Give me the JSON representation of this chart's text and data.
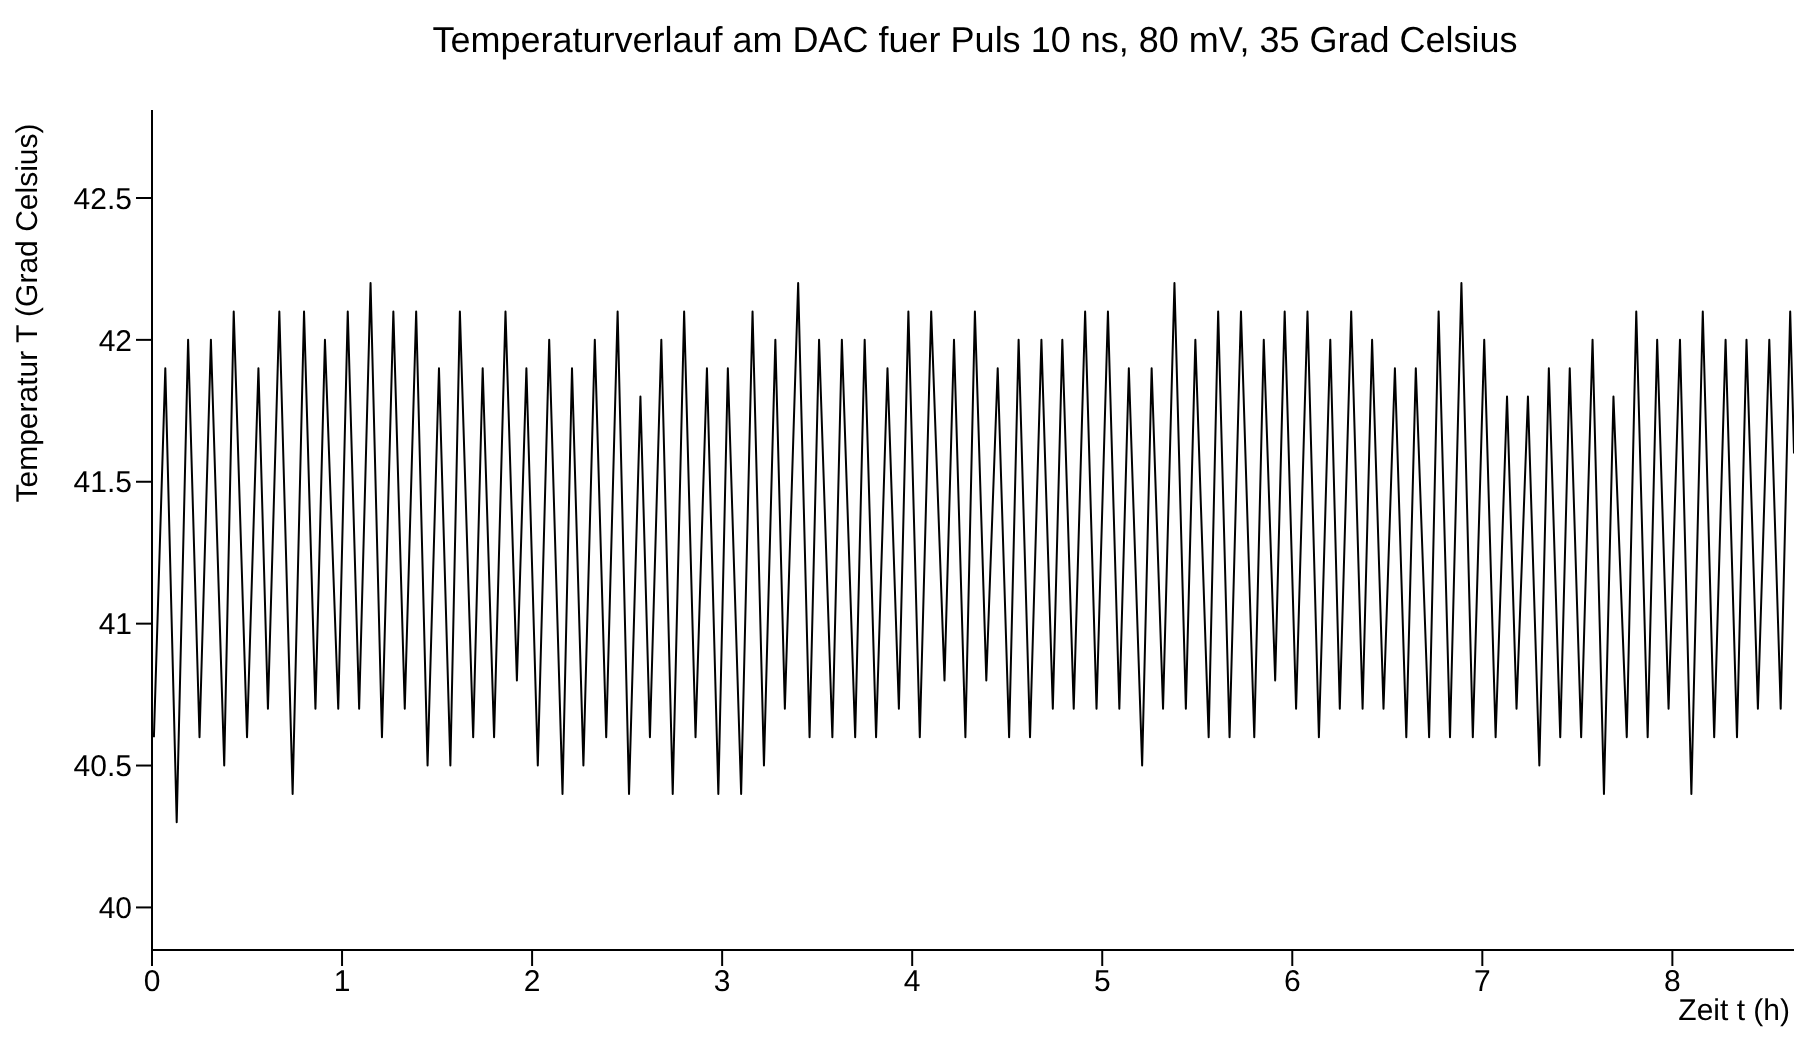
{
  "chart_data": {
    "type": "line",
    "title": "Temperaturverlauf am DAC fuer Puls 10 ns, 80 mV, 35 Grad Celsius",
    "xlabel": "Zeit t (h)",
    "ylabel": "Temperatur T (Grad Celsius)",
    "xlim": [
      0,
      8.64
    ],
    "xticks": [
      0,
      1,
      2,
      3,
      4,
      5,
      6,
      7,
      8
    ],
    "ylim": [
      39.85,
      42.81
    ],
    "yticks": [
      40,
      40.5,
      41,
      41.5,
      42,
      42.5
    ],
    "grid": false,
    "legend": false,
    "series": [
      {
        "color": "#000000",
        "x": [
          0.01,
          0.07,
          0.13,
          0.19,
          0.25,
          0.31,
          0.38,
          0.43,
          0.5,
          0.56,
          0.61,
          0.67,
          0.74,
          0.8,
          0.86,
          0.91,
          0.98,
          1.03,
          1.09,
          1.15,
          1.21,
          1.27,
          1.33,
          1.39,
          1.45,
          1.51,
          1.57,
          1.62,
          1.69,
          1.74,
          1.8,
          1.86,
          1.92,
          1.97,
          2.03,
          2.09,
          2.16,
          2.21,
          2.27,
          2.33,
          2.39,
          2.45,
          2.51,
          2.57,
          2.62,
          2.68,
          2.74,
          2.8,
          2.86,
          2.92,
          2.98,
          3.03,
          3.1,
          3.16,
          3.22,
          3.28,
          3.33,
          3.4,
          3.46,
          3.51,
          3.58,
          3.63,
          3.7,
          3.75,
          3.81,
          3.87,
          3.93,
          3.98,
          4.04,
          4.1,
          4.17,
          4.22,
          4.28,
          4.33,
          4.39,
          4.45,
          4.51,
          4.56,
          4.62,
          4.68,
          4.74,
          4.79,
          4.85,
          4.91,
          4.97,
          5.03,
          5.09,
          5.14,
          5.21,
          5.26,
          5.32,
          5.38,
          5.44,
          5.49,
          5.56,
          5.61,
          5.67,
          5.73,
          5.8,
          5.85,
          5.91,
          5.96,
          6.02,
          6.08,
          6.14,
          6.2,
          6.25,
          6.31,
          6.37,
          6.42,
          6.48,
          6.54,
          6.6,
          6.65,
          6.72,
          6.77,
          6.83,
          6.89,
          6.95,
          7.01,
          7.07,
          7.13,
          7.18,
          7.24,
          7.3,
          7.35,
          7.41,
          7.46,
          7.52,
          7.58,
          7.64,
          7.69,
          7.76,
          7.81,
          7.87,
          7.92,
          7.98,
          8.04,
          8.1,
          8.16,
          8.22,
          8.28,
          8.34,
          8.39,
          8.45,
          8.51,
          8.57,
          8.62,
          8.64
        ],
        "values": [
          40.6,
          41.9,
          40.3,
          42.0,
          40.6,
          42.0,
          40.5,
          42.1,
          40.6,
          41.9,
          40.7,
          42.1,
          40.4,
          42.1,
          40.7,
          42.0,
          40.7,
          42.1,
          40.7,
          42.2,
          40.6,
          42.1,
          40.7,
          42.1,
          40.5,
          41.9,
          40.5,
          42.1,
          40.6,
          41.9,
          40.6,
          42.1,
          40.8,
          41.9,
          40.5,
          42.0,
          40.4,
          41.9,
          40.5,
          42.0,
          40.6,
          42.1,
          40.4,
          41.8,
          40.6,
          42.0,
          40.4,
          42.1,
          40.6,
          41.9,
          40.4,
          41.9,
          40.4,
          42.1,
          40.5,
          42.0,
          40.7,
          42.2,
          40.6,
          42.0,
          40.6,
          42.0,
          40.6,
          42.0,
          40.6,
          41.9,
          40.7,
          42.1,
          40.6,
          42.1,
          40.8,
          42.0,
          40.6,
          42.1,
          40.8,
          41.9,
          40.6,
          42.0,
          40.6,
          42.0,
          40.7,
          42.0,
          40.7,
          42.1,
          40.7,
          42.1,
          40.7,
          41.9,
          40.5,
          41.9,
          40.7,
          42.2,
          40.7,
          42.0,
          40.6,
          42.1,
          40.6,
          42.1,
          40.6,
          42.0,
          40.8,
          42.1,
          40.7,
          42.1,
          40.6,
          42.0,
          40.7,
          42.1,
          40.7,
          42.0,
          40.7,
          41.9,
          40.6,
          41.9,
          40.6,
          42.1,
          40.6,
          42.2,
          40.6,
          42.0,
          40.6,
          41.8,
          40.7,
          41.8,
          40.5,
          41.9,
          40.6,
          41.9,
          40.6,
          42.0,
          40.4,
          41.8,
          40.6,
          42.1,
          40.6,
          42.0,
          40.7,
          42.0,
          40.4,
          42.1,
          40.6,
          42.0,
          40.6,
          42.0,
          40.7,
          42.0,
          40.7,
          42.1,
          41.6
        ]
      }
    ]
  }
}
